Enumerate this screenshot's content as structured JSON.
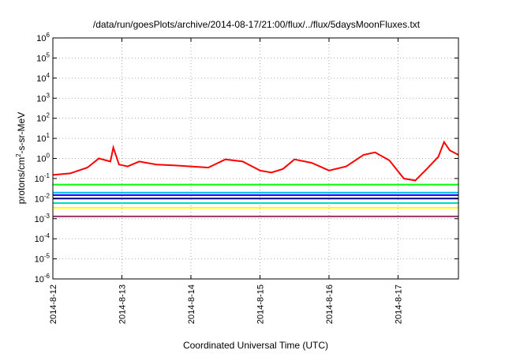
{
  "chart_data": {
    "type": "line",
    "title": "/data/run/goesPlots/archive/2014-08-17/21:00/flux/../flux/5daysMoonFluxes.txt",
    "xlabel": "Coordinated Universal Time (UTC)",
    "ylabel": "protons/cm²-s-sr-MeV",
    "x_range": [
      "2014-08-12 00:00",
      "2014-08-17 21:00"
    ],
    "y_range": [
      1e-06,
      1000000.0
    ],
    "y_scale": "log",
    "grid": true,
    "x_ticks": [
      "2014-8-12",
      "2014-8-13",
      "2014-8-14",
      "2014-8-15",
      "2014-8-16",
      "2014-8-17"
    ],
    "y_ticks": [
      "10-6",
      "10-5",
      "10-4",
      "10-3",
      "10-2",
      "10-1",
      "100",
      "101",
      "102",
      "103",
      "104",
      "105",
      "106"
    ],
    "series": [
      {
        "color": "#ff0000",
        "x": [
          "2014-08-12 00:00",
          "2014-08-12 06:00",
          "2014-08-12 12:00",
          "2014-08-12 16:00",
          "2014-08-12 20:00",
          "2014-08-12 21:00",
          "2014-08-12 23:00",
          "2014-08-13 02:00",
          "2014-08-13 06:00",
          "2014-08-13 12:00",
          "2014-08-13 18:00",
          "2014-08-14 00:00",
          "2014-08-14 06:00",
          "2014-08-14 12:00",
          "2014-08-14 18:00",
          "2014-08-15 00:00",
          "2014-08-15 04:00",
          "2014-08-15 08:00",
          "2014-08-15 12:00",
          "2014-08-15 18:00",
          "2014-08-16 00:00",
          "2014-08-16 06:00",
          "2014-08-16 12:00",
          "2014-08-16 16:00",
          "2014-08-16 21:00",
          "2014-08-17 02:00",
          "2014-08-17 06:00",
          "2014-08-17 10:00",
          "2014-08-17 14:00",
          "2014-08-17 16:00",
          "2014-08-17 18:00",
          "2014-08-17 21:00"
        ],
        "y": [
          0.15,
          0.18,
          0.35,
          1.0,
          0.7,
          3.5,
          0.5,
          0.4,
          0.7,
          0.5,
          0.45,
          0.4,
          0.35,
          0.9,
          0.7,
          0.25,
          0.2,
          0.3,
          0.9,
          0.6,
          0.25,
          0.4,
          1.5,
          2.0,
          0.8,
          0.1,
          0.08,
          0.3,
          1.2,
          6.5,
          2.5,
          1.5
        ]
      },
      {
        "color": "#00ff00",
        "x": [
          "2014-08-12 00:00",
          "2014-08-13 00:00",
          "2014-08-14 00:00",
          "2014-08-15 00:00",
          "2014-08-16 00:00",
          "2014-08-17 00:00",
          "2014-08-17 21:00"
        ],
        "y": [
          0.05,
          0.05,
          0.05,
          0.05,
          0.05,
          0.05,
          0.05
        ]
      },
      {
        "color": "#00bbee",
        "x": [
          "2014-08-12 00:00",
          "2014-08-13 00:00",
          "2014-08-14 00:00",
          "2014-08-15 00:00",
          "2014-08-16 00:00",
          "2014-08-17 00:00",
          "2014-08-17 21:00"
        ],
        "y": [
          0.02,
          0.02,
          0.02,
          0.02,
          0.02,
          0.02,
          0.02
        ]
      },
      {
        "color": "#0000ff",
        "x": [
          "2014-08-12 00:00",
          "2014-08-13 00:00",
          "2014-08-14 00:00",
          "2014-08-15 00:00",
          "2014-08-16 00:00",
          "2014-08-17 00:00",
          "2014-08-17 21:00"
        ],
        "y": [
          0.015,
          0.015,
          0.015,
          0.015,
          0.015,
          0.015,
          0.015
        ]
      },
      {
        "color": "#00008b",
        "x": [
          "2014-08-12 00:00",
          "2014-08-13 00:00",
          "2014-08-14 00:00",
          "2014-08-15 00:00",
          "2014-08-16 00:00",
          "2014-08-17 00:00",
          "2014-08-17 21:00"
        ],
        "y": [
          0.01,
          0.01,
          0.01,
          0.01,
          0.01,
          0.01,
          0.01
        ]
      },
      {
        "color": "#00ddbb",
        "x": [
          "2014-08-12 00:00",
          "2014-08-13 00:00",
          "2014-08-14 00:00",
          "2014-08-15 00:00",
          "2014-08-16 00:00",
          "2014-08-17 00:00",
          "2014-08-17 21:00"
        ],
        "y": [
          0.006,
          0.006,
          0.006,
          0.006,
          0.006,
          0.006,
          0.006
        ]
      },
      {
        "color": "#ffff00",
        "x": [
          "2014-08-12 00:00",
          "2014-08-13 00:00",
          "2014-08-14 00:00",
          "2014-08-15 00:00",
          "2014-08-16 00:00",
          "2014-08-17 00:00",
          "2014-08-17 21:00"
        ],
        "y": [
          0.0035,
          0.0035,
          0.0035,
          0.0035,
          0.0035,
          0.0035,
          0.0035
        ]
      },
      {
        "color": "#993366",
        "x": [
          "2014-08-12 00:00",
          "2014-08-13 00:00",
          "2014-08-14 00:00",
          "2014-08-15 00:00",
          "2014-08-16 00:00",
          "2014-08-17 00:00",
          "2014-08-17 21:00"
        ],
        "y": [
          0.0013,
          0.0013,
          0.0013,
          0.0013,
          0.0013,
          0.0013,
          0.0013
        ]
      }
    ]
  }
}
